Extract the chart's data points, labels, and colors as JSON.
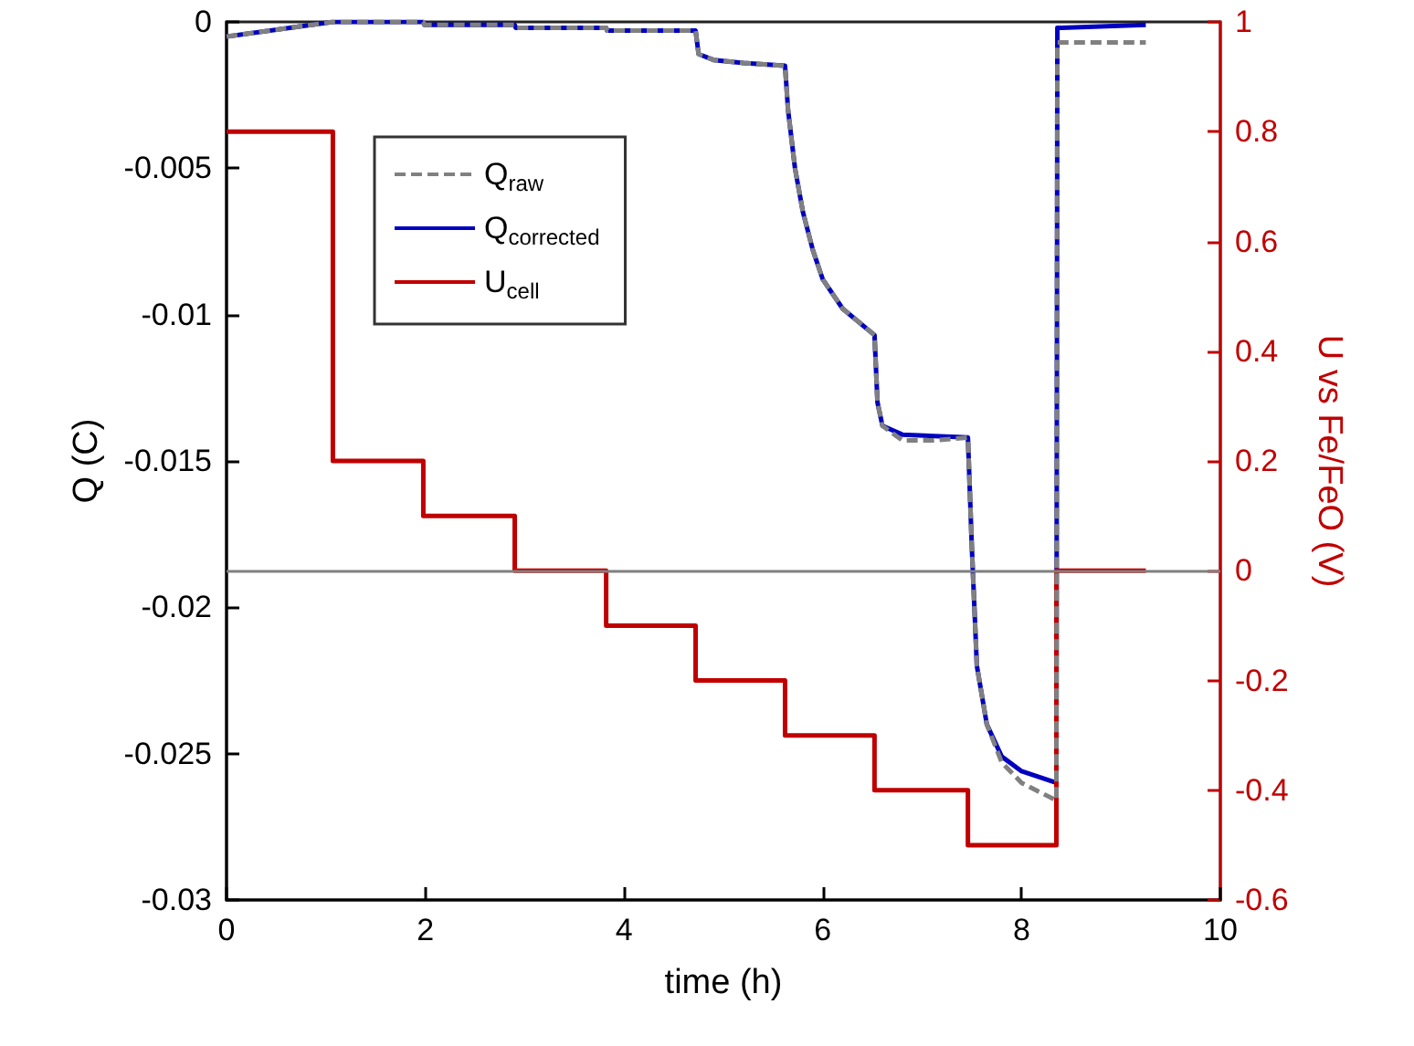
{
  "chart_data": {
    "type": "line",
    "xlabel": "time (h)",
    "ylabel": "Q (C)",
    "y2label": "U vs Fe/FeO (V)",
    "xlim": [
      0,
      10
    ],
    "xticks": [
      0,
      2,
      4,
      6,
      8,
      10
    ],
    "ylim": [
      -0.03,
      0
    ],
    "yticks": [
      -0.03,
      -0.025,
      -0.02,
      -0.015,
      -0.01,
      -0.005,
      0
    ],
    "y2lim": [
      -0.6,
      1
    ],
    "y2ticks": [
      -0.6,
      -0.4,
      -0.2,
      0,
      0.2,
      0.4,
      0.6,
      0.8,
      1
    ],
    "legend": "top left",
    "ref_lines": [
      {
        "axis": "y2",
        "value": 0,
        "color": "#808080"
      }
    ],
    "series": [
      {
        "name": "Q$_{raw}$",
        "color": "#808080",
        "line_style": "dashed",
        "x": [
          0,
          1.07,
          1.98,
          1.99,
          2.9,
          2.91,
          3.82,
          3.83,
          4.72,
          4.75,
          4.9,
          5.2,
          5.62,
          5.65,
          5.72,
          5.8,
          5.9,
          6.0,
          6.2,
          6.52,
          6.55,
          6.6,
          6.8,
          7.1,
          7.46,
          7.5,
          7.55,
          7.65,
          7.8,
          8.0,
          8.35,
          8.36,
          8.4,
          9.25
        ],
        "values": [
          -0.0005,
          0,
          0,
          -0.0001,
          -0.0001,
          -0.0002,
          -0.0002,
          -0.0003,
          -0.0003,
          -0.0011,
          -0.0013,
          -0.0014,
          -0.0015,
          -0.003,
          -0.005,
          -0.0065,
          -0.0078,
          -0.0088,
          -0.0098,
          -0.0107,
          -0.013,
          -0.0138,
          -0.0143,
          -0.0143,
          -0.0142,
          -0.018,
          -0.022,
          -0.024,
          -0.0253,
          -0.026,
          -0.0266,
          -0.0007,
          -0.0007,
          -0.0007
        ]
      },
      {
        "name": "Q$_{corrected}$",
        "color": "#0000c0",
        "line_style": "solid",
        "x": [
          0,
          1.07,
          1.98,
          1.99,
          2.9,
          2.91,
          3.82,
          3.83,
          4.72,
          4.75,
          4.9,
          5.2,
          5.62,
          5.65,
          5.72,
          5.8,
          5.9,
          6.0,
          6.2,
          6.52,
          6.55,
          6.6,
          6.8,
          7.46,
          7.5,
          7.55,
          7.65,
          7.8,
          8.0,
          8.35,
          8.36,
          8.4,
          9.25
        ],
        "values": [
          -0.0005,
          0,
          0,
          -0.0001,
          -0.0001,
          -0.0002,
          -0.0002,
          -0.0003,
          -0.0003,
          -0.0011,
          -0.0013,
          -0.0014,
          -0.0015,
          -0.003,
          -0.005,
          -0.0065,
          -0.0078,
          -0.0088,
          -0.0098,
          -0.0107,
          -0.013,
          -0.0138,
          -0.0141,
          -0.0142,
          -0.018,
          -0.022,
          -0.024,
          -0.0251,
          -0.0256,
          -0.026,
          -0.0002,
          -0.0002,
          -0.0001
        ]
      },
      {
        "name": "U$_{cell}$",
        "color": "#c00000",
        "line_style": "solid",
        "axis": "y2",
        "x": [
          0,
          1.07,
          1.07,
          1.98,
          1.98,
          2.9,
          2.9,
          3.82,
          3.82,
          4.72,
          4.72,
          5.62,
          5.62,
          6.52,
          6.52,
          7.46,
          7.46,
          8.35,
          8.35,
          9.25
        ],
        "values": [
          0.8,
          0.8,
          0.2,
          0.2,
          0.1,
          0.1,
          0,
          0,
          -0.1,
          -0.1,
          -0.2,
          -0.2,
          -0.3,
          -0.3,
          -0.4,
          -0.4,
          -0.5,
          -0.5,
          0,
          0
        ]
      }
    ]
  }
}
